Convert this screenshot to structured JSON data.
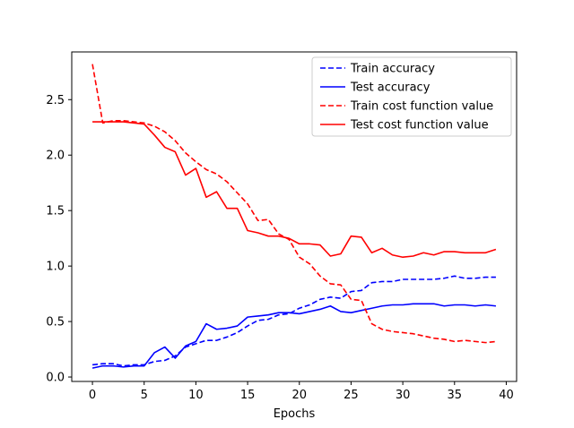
{
  "chart_data": {
    "type": "line",
    "xlabel": "Epochs",
    "ylabel": "",
    "xlim": [
      -2,
      41
    ],
    "ylim": [
      -0.04,
      2.93
    ],
    "xticks": [
      0,
      5,
      10,
      15,
      20,
      25,
      30,
      35,
      40
    ],
    "xtick_labels": [
      "0",
      "5",
      "10",
      "15",
      "20",
      "25",
      "30",
      "35",
      "40"
    ],
    "yticks": [
      0.0,
      0.5,
      1.0,
      1.5,
      2.0,
      2.5
    ],
    "ytick_labels": [
      "0.0",
      "0.5",
      "1.0",
      "1.5",
      "2.0",
      "2.5"
    ],
    "grid": false,
    "legend_position": "top-right",
    "x": [
      0,
      1,
      2,
      3,
      4,
      5,
      6,
      7,
      8,
      9,
      10,
      11,
      12,
      13,
      14,
      15,
      16,
      17,
      18,
      19,
      20,
      21,
      22,
      23,
      24,
      25,
      26,
      27,
      28,
      29,
      30,
      31,
      32,
      33,
      34,
      35,
      36,
      37,
      38,
      39
    ],
    "series": [
      {
        "name": "Train accuracy",
        "color": "#0000ff",
        "style": "dashed",
        "values": [
          0.11,
          0.12,
          0.12,
          0.1,
          0.11,
          0.11,
          0.14,
          0.15,
          0.19,
          0.27,
          0.3,
          0.33,
          0.33,
          0.36,
          0.4,
          0.46,
          0.51,
          0.52,
          0.56,
          0.57,
          0.62,
          0.65,
          0.7,
          0.72,
          0.71,
          0.77,
          0.78,
          0.85,
          0.86,
          0.86,
          0.88,
          0.88,
          0.88,
          0.88,
          0.89,
          0.91,
          0.89,
          0.89,
          0.9,
          0.9
        ]
      },
      {
        "name": "Test accuracy",
        "color": "#0000ff",
        "style": "solid",
        "values": [
          0.08,
          0.1,
          0.1,
          0.09,
          0.1,
          0.1,
          0.22,
          0.27,
          0.17,
          0.28,
          0.32,
          0.48,
          0.43,
          0.44,
          0.46,
          0.54,
          0.55,
          0.56,
          0.58,
          0.58,
          0.57,
          0.59,
          0.61,
          0.64,
          0.59,
          0.58,
          0.6,
          0.62,
          0.64,
          0.65,
          0.65,
          0.66,
          0.66,
          0.66,
          0.64,
          0.65,
          0.65,
          0.64,
          0.65,
          0.64
        ]
      },
      {
        "name": "Train cost function value",
        "color": "#ff0000",
        "style": "dashed",
        "values": [
          2.82,
          2.29,
          2.31,
          2.31,
          2.3,
          2.29,
          2.26,
          2.21,
          2.13,
          2.02,
          1.94,
          1.87,
          1.83,
          1.76,
          1.66,
          1.56,
          1.41,
          1.42,
          1.29,
          1.24,
          1.08,
          1.02,
          0.91,
          0.84,
          0.83,
          0.7,
          0.69,
          0.48,
          0.43,
          0.41,
          0.4,
          0.39,
          0.37,
          0.35,
          0.34,
          0.32,
          0.33,
          0.32,
          0.31,
          0.32
        ]
      },
      {
        "name": "Test cost function value",
        "color": "#ff0000",
        "style": "solid",
        "values": [
          2.3,
          2.3,
          2.3,
          2.3,
          2.29,
          2.28,
          2.18,
          2.07,
          2.03,
          1.82,
          1.88,
          1.62,
          1.67,
          1.52,
          1.52,
          1.32,
          1.3,
          1.27,
          1.27,
          1.25,
          1.2,
          1.2,
          1.19,
          1.09,
          1.11,
          1.27,
          1.26,
          1.12,
          1.16,
          1.1,
          1.08,
          1.09,
          1.12,
          1.1,
          1.13,
          1.13,
          1.12,
          1.12,
          1.12,
          1.15
        ]
      }
    ]
  }
}
